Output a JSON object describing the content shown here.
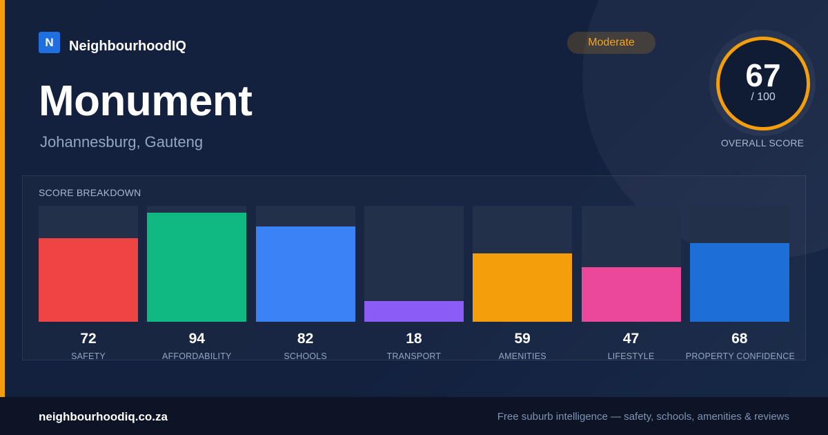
{
  "brand": {
    "logo_letter": "N",
    "name": "NeighbourhoodIQ"
  },
  "suburb": {
    "name": "Monument",
    "location": "Johannesburg, Gauteng"
  },
  "badge": {
    "label": "Moderate"
  },
  "overall": {
    "score": "67",
    "max": "/ 100",
    "label": "OVERALL SCORE",
    "ring_color": "#f59e0b"
  },
  "breakdown": {
    "title": "SCORE BREAKDOWN",
    "max_value": 100,
    "items": [
      {
        "label": "SAFETY",
        "value": 72,
        "color": "#ef4444"
      },
      {
        "label": "AFFORDABILITY",
        "value": 94,
        "color": "#10b981"
      },
      {
        "label": "SCHOOLS",
        "value": 82,
        "color": "#3b82f6"
      },
      {
        "label": "TRANSPORT",
        "value": 18,
        "color": "#8b5cf6"
      },
      {
        "label": "AMENITIES",
        "value": 59,
        "color": "#f59e0b"
      },
      {
        "label": "LIFESTYLE",
        "value": 47,
        "color": "#ec4899"
      },
      {
        "label": "PROPERTY CONFIDENCE",
        "value": 68,
        "color": "#1d6fd8"
      }
    ]
  },
  "footer": {
    "url": "neighbourhoodiq.co.za",
    "tagline": "Free suburb intelligence — safety, schools, amenities & reviews"
  }
}
